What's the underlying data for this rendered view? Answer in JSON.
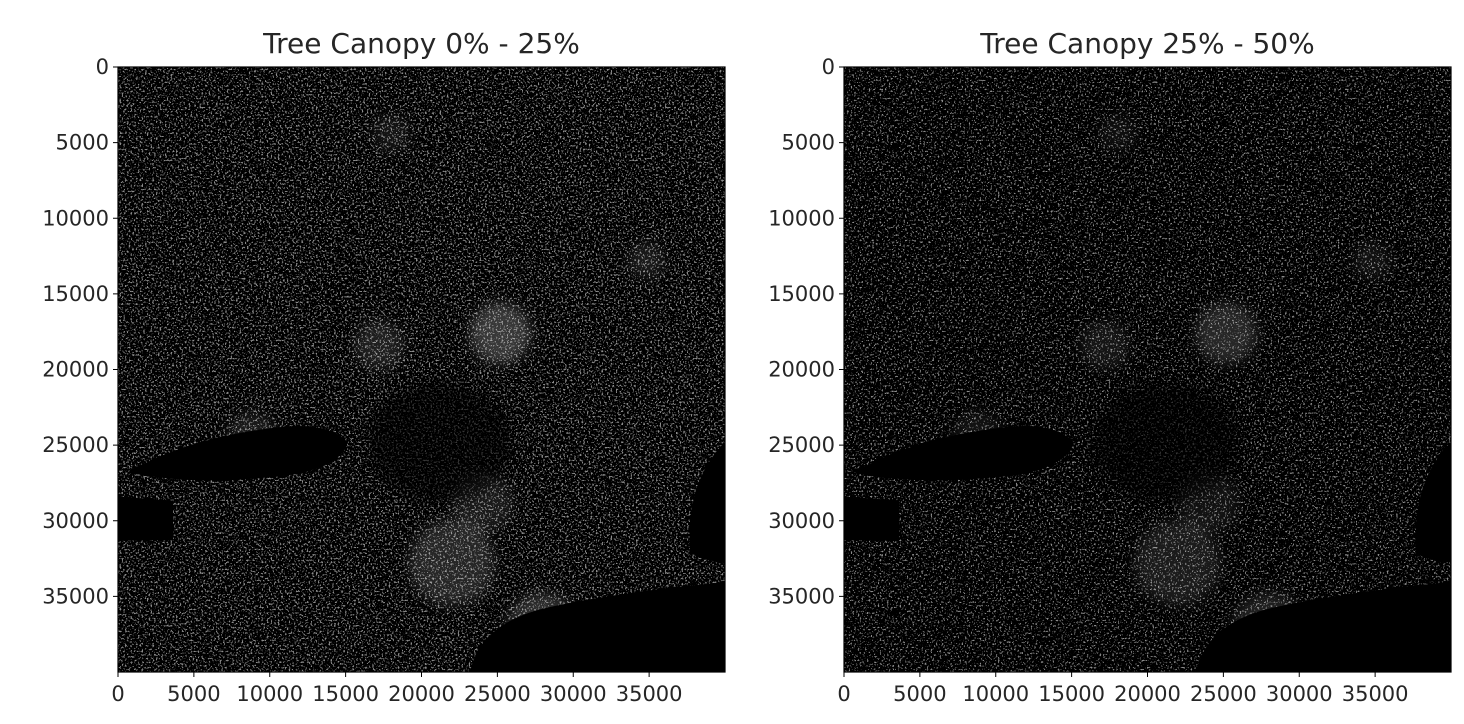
{
  "chart_data": [
    {
      "type": "heatmap",
      "title": "Tree Canopy 0% - 25%",
      "colormap": "gray",
      "background_color": "#000000",
      "xlim": [
        0,
        40000
      ],
      "ylim": [
        40000,
        0
      ],
      "xticks": [
        0,
        5000,
        10000,
        15000,
        20000,
        25000,
        30000,
        35000
      ],
      "yticks": [
        0,
        5000,
        10000,
        15000,
        20000,
        25000,
        30000,
        35000
      ],
      "xtick_labels": [
        "0",
        "5000",
        "10000",
        "15000",
        "20000",
        "25000",
        "30000",
        "35000"
      ],
      "ytick_labels": [
        "0",
        "5000",
        "10000",
        "15000",
        "20000",
        "25000",
        "30000",
        "35000"
      ]
    },
    {
      "type": "heatmap",
      "title": "Tree Canopy 25% - 50%",
      "colormap": "gray",
      "background_color": "#000000",
      "xlim": [
        0,
        40000
      ],
      "ylim": [
        40000,
        0
      ],
      "xticks": [
        0,
        5000,
        10000,
        15000,
        20000,
        25000,
        30000,
        35000
      ],
      "yticks": [
        0,
        5000,
        10000,
        15000,
        20000,
        25000,
        30000,
        35000
      ],
      "xtick_labels": [
        "0",
        "5000",
        "10000",
        "15000",
        "20000",
        "25000",
        "30000",
        "35000"
      ],
      "ytick_labels": [
        "0",
        "5000",
        "10000",
        "15000",
        "20000",
        "25000",
        "30000",
        "35000"
      ]
    }
  ]
}
